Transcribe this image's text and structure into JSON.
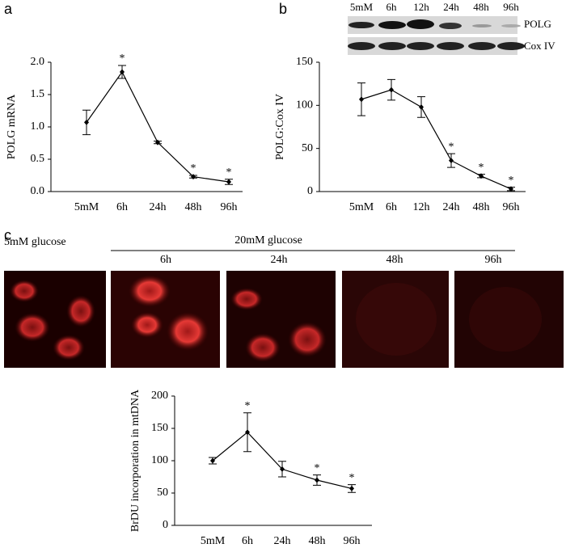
{
  "panel_labels": [
    "a",
    "b",
    "c"
  ],
  "chart_data": [
    {
      "type": "line",
      "y_label": "POLG mRNA",
      "categories": [
        "5mM",
        "6h",
        "24h",
        "48h",
        "96h"
      ],
      "values": [
        1.07,
        1.85,
        0.76,
        0.23,
        0.15
      ],
      "errors": [
        0.19,
        0.1,
        0.02,
        0.02,
        0.04
      ],
      "significance": [
        null,
        "*",
        null,
        "*",
        "*"
      ],
      "ylim": [
        0,
        2
      ],
      "yticks": [
        {
          "value": 0,
          "label": "0.0"
        },
        0.5,
        {
          "value": 1,
          "label": "1.0"
        },
        1.5,
        {
          "value": 2,
          "label": "2.0"
        }
      ],
      "color": "#000000"
    },
    {
      "type": "line",
      "y_label": "POLG:Cox IV",
      "categories": [
        "5mM",
        "6h",
        "12h",
        "24h",
        "48h",
        "96h"
      ],
      "values": [
        107,
        118,
        98,
        36,
        18,
        3
      ],
      "errors": [
        19,
        12,
        12,
        8,
        2,
        2
      ],
      "significance": [
        null,
        null,
        null,
        "*",
        "*",
        "*"
      ],
      "ylim": [
        0,
        150
      ],
      "yticks": [
        0,
        50,
        100,
        150
      ],
      "color": "#000000",
      "blot_bands": [
        "POLG",
        "Cox IV"
      ]
    },
    {
      "type": "line",
      "y_label": "BrDU incorporation in mtDNA",
      "categories": [
        "5mM",
        "6h",
        "24h",
        "48h",
        "96h"
      ],
      "values": [
        100,
        144,
        87,
        70,
        57
      ],
      "errors": [
        5,
        30,
        12,
        8,
        6
      ],
      "significance": [
        null,
        "*",
        null,
        "*",
        "*"
      ],
      "ylim": [
        0,
        200
      ],
      "yticks": [
        0,
        50,
        100,
        150,
        200
      ],
      "color": "#000000"
    }
  ],
  "micrographs": {
    "control_label": "5mM glucose",
    "treatment_label": "20mM glucose",
    "times": [
      "6h",
      "24h",
      "48h",
      "96h"
    ]
  }
}
